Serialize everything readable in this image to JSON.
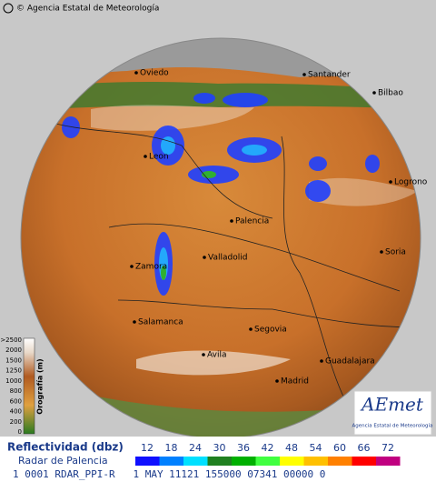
{
  "header": {
    "credit": "© Agencia Estatal de Meteorología"
  },
  "map": {
    "cities": [
      {
        "name": "Oviedo"
      },
      {
        "name": "Santander"
      },
      {
        "name": "Bilbao"
      },
      {
        "name": "Leon"
      },
      {
        "name": "Logrono"
      },
      {
        "name": "Palencia"
      },
      {
        "name": "Soria"
      },
      {
        "name": "Zamora"
      },
      {
        "name": "Valladolid"
      },
      {
        "name": "Salamanca"
      },
      {
        "name": "Segovia"
      },
      {
        "name": "Avila"
      },
      {
        "name": "Madrid"
      },
      {
        "name": "Guadalajara"
      }
    ]
  },
  "elevation_scale": {
    "title": "Orografía (m)",
    "labels": [
      ">2500",
      "2000",
      "1500",
      "1250",
      "1000",
      "800",
      "600",
      "400",
      "200",
      "0"
    ]
  },
  "logo": {
    "brand": "AEmet",
    "caption": "Agencia Estatal de Meteorología"
  },
  "legend": {
    "title": "Reflectividad (dbz)",
    "subtitle": "Radar de Palencia",
    "levels": [
      {
        "value": 12,
        "color": "#1010ff"
      },
      {
        "value": 18,
        "color": "#0080ff"
      },
      {
        "value": 24,
        "color": "#00e0ff"
      },
      {
        "value": 30,
        "color": "#208020"
      },
      {
        "value": 36,
        "color": "#00b000"
      },
      {
        "value": 42,
        "color": "#40ff40"
      },
      {
        "value": 48,
        "color": "#ffff00"
      },
      {
        "value": 54,
        "color": "#ffc000"
      },
      {
        "value": 60,
        "color": "#ff8000"
      },
      {
        "value": 66,
        "color": "#ff0000"
      },
      {
        "value": 72,
        "color": "#c00080"
      }
    ]
  },
  "footer": {
    "text": "1 0001 RDAR_PPI-R   1 MAY 11121 155000 07341 00000 0"
  }
}
